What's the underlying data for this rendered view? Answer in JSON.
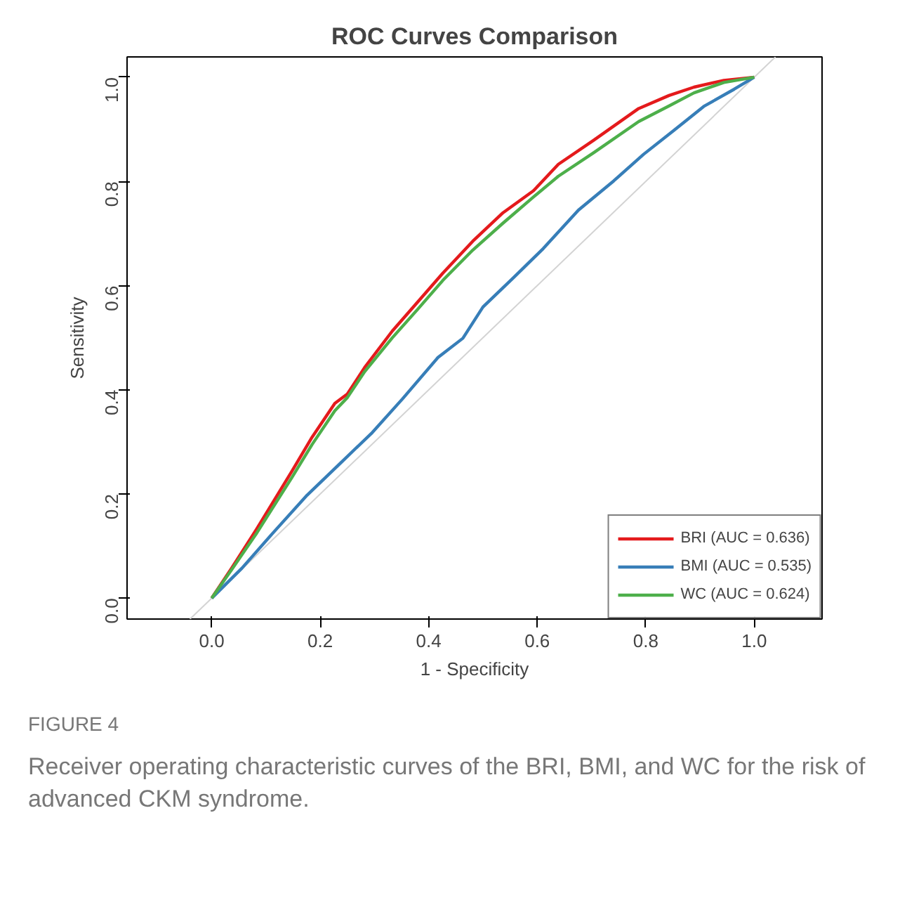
{
  "chart_data": {
    "type": "line",
    "title": "ROC Curves Comparison",
    "xlabel": "1 - Specificity",
    "ylabel": "Sensitivity",
    "xlim": [
      -0.156,
      1.125
    ],
    "ylim": [
      -0.04,
      1.039
    ],
    "xticks": [
      {
        "value": 0,
        "label": "0.0"
      },
      0.2,
      0.4,
      0.6,
      0.8,
      {
        "value": 1,
        "label": "1.0"
      }
    ],
    "yticks": [
      {
        "value": 0,
        "label": "0.0"
      },
      0.2,
      0.4,
      0.6,
      0.8,
      {
        "value": 1,
        "label": "1.0"
      }
    ],
    "grid": false,
    "legend": "bottom right",
    "marker": "none",
    "line_style": "solid",
    "series": [
      {
        "type": "line",
        "color": "#d3d3d3",
        "x": [
          -0.04,
          1.039
        ],
        "values": [
          -0.04,
          1.039
        ]
      },
      {
        "name": "BRI (AUC = 0.636)",
        "color": "#e41a1c",
        "x": [
          0,
          0.037,
          0.083,
          0.148,
          0.185,
          0.227,
          0.25,
          0.282,
          0.333,
          0.38,
          0.426,
          0.481,
          0.537,
          0.593,
          0.639,
          0.704,
          0.787,
          0.843,
          0.889,
          0.944,
          1
        ],
        "values": [
          0,
          0.058,
          0.133,
          0.244,
          0.309,
          0.374,
          0.392,
          0.443,
          0.513,
          0.569,
          0.624,
          0.685,
          0.74,
          0.782,
          0.833,
          0.879,
          0.94,
          0.965,
          0.981,
          0.994,
          1
        ]
      },
      {
        "name": "BMI (AUC = 0.535)",
        "color": "#377eb8",
        "x": [
          0,
          0.056,
          0.111,
          0.176,
          0.241,
          0.296,
          0.352,
          0.417,
          0.463,
          0.5,
          0.556,
          0.611,
          0.676,
          0.741,
          0.796,
          0.852,
          0.907,
          0.963,
          1
        ],
        "values": [
          0,
          0.058,
          0.123,
          0.198,
          0.263,
          0.318,
          0.383,
          0.462,
          0.499,
          0.559,
          0.615,
          0.671,
          0.745,
          0.801,
          0.852,
          0.898,
          0.944,
          0.977,
          1
        ]
      },
      {
        "name": "WC (AUC = 0.624)",
        "color": "#4daf4a",
        "x": [
          0,
          0.037,
          0.083,
          0.148,
          0.185,
          0.227,
          0.25,
          0.282,
          0.333,
          0.38,
          0.426,
          0.481,
          0.537,
          0.593,
          0.639,
          0.704,
          0.787,
          0.843,
          0.889,
          0.944,
          1
        ],
        "values": [
          0,
          0.055,
          0.125,
          0.232,
          0.295,
          0.36,
          0.385,
          0.435,
          0.5,
          0.555,
          0.61,
          0.668,
          0.72,
          0.77,
          0.81,
          0.855,
          0.915,
          0.945,
          0.97,
          0.99,
          1
        ]
      }
    ],
    "annotations": [
      "FIGURE 4",
      "Receiver operating characteristic curves of the BRI, BMI, and WC for the risk of advanced CKM syndrome."
    ]
  }
}
